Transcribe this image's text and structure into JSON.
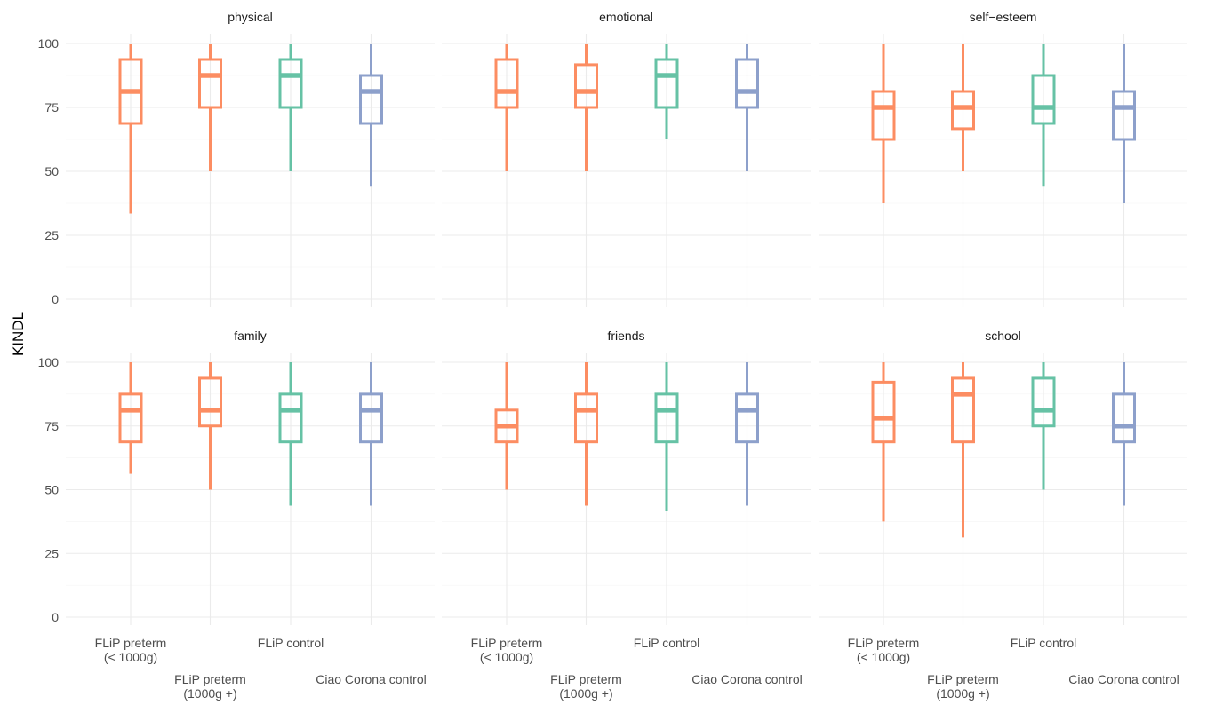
{
  "chart_data": {
    "type": "boxplot",
    "ylabel": "KINDL",
    "ylim": [
      0,
      100
    ],
    "yticks": [
      0,
      25,
      50,
      75,
      100
    ],
    "grid": true,
    "legend": "none",
    "categories": [
      {
        "key": "preterm_lt1000",
        "lines": [
          "FLiP preterm",
          "(< 1000g)"
        ],
        "row": 0
      },
      {
        "key": "preterm_ge1000",
        "lines": [
          "FLiP preterm",
          "(1000g +)"
        ],
        "row": 1
      },
      {
        "key": "control",
        "lines": [
          "FLiP control"
        ],
        "row": 0
      },
      {
        "key": "ciao",
        "lines": [
          "Ciao Corona control"
        ],
        "row": 1
      }
    ],
    "colors": {
      "preterm_lt1000": "#fc8d62",
      "preterm_ge1000": "#fc8d62",
      "control": "#66c2a5",
      "ciao": "#8da0cb"
    },
    "panels": [
      {
        "title": "physical",
        "boxes": [
          {
            "min": 33.5,
            "q1": 68.75,
            "median": 81.25,
            "q3": 93.75,
            "max": 100
          },
          {
            "min": 50,
            "q1": 75,
            "median": 87.5,
            "q3": 93.75,
            "max": 100
          },
          {
            "min": 50,
            "q1": 75,
            "median": 87.5,
            "q3": 93.75,
            "max": 100
          },
          {
            "min": 44,
            "q1": 68.75,
            "median": 81.25,
            "q3": 87.5,
            "max": 100
          }
        ]
      },
      {
        "title": "emotional",
        "boxes": [
          {
            "min": 50,
            "q1": 75,
            "median": 81.25,
            "q3": 93.75,
            "max": 100
          },
          {
            "min": 50,
            "q1": 75,
            "median": 81.25,
            "q3": 91.7,
            "max": 100
          },
          {
            "min": 62.5,
            "q1": 75,
            "median": 87.5,
            "q3": 93.75,
            "max": 100
          },
          {
            "min": 50,
            "q1": 75,
            "median": 81.25,
            "q3": 93.75,
            "max": 100
          }
        ]
      },
      {
        "title": "self−esteem",
        "boxes": [
          {
            "min": 37.5,
            "q1": 62.5,
            "median": 75,
            "q3": 81.25,
            "max": 100
          },
          {
            "min": 50,
            "q1": 66.7,
            "median": 75,
            "q3": 81.25,
            "max": 100
          },
          {
            "min": 44,
            "q1": 68.75,
            "median": 75,
            "q3": 87.5,
            "max": 100
          },
          {
            "min": 37.5,
            "q1": 62.5,
            "median": 75,
            "q3": 81.25,
            "max": 100
          }
        ]
      },
      {
        "title": "family",
        "boxes": [
          {
            "min": 56.25,
            "q1": 68.75,
            "median": 81.25,
            "q3": 87.5,
            "max": 100
          },
          {
            "min": 50,
            "q1": 75,
            "median": 81.25,
            "q3": 93.75,
            "max": 100
          },
          {
            "min": 43.75,
            "q1": 68.75,
            "median": 81.25,
            "q3": 87.5,
            "max": 100
          },
          {
            "min": 43.75,
            "q1": 68.75,
            "median": 81.25,
            "q3": 87.5,
            "max": 100
          }
        ]
      },
      {
        "title": "friends",
        "boxes": [
          {
            "min": 50,
            "q1": 68.75,
            "median": 75,
            "q3": 81.25,
            "max": 100
          },
          {
            "min": 43.75,
            "q1": 68.75,
            "median": 81.25,
            "q3": 87.5,
            "max": 100
          },
          {
            "min": 41.7,
            "q1": 68.75,
            "median": 81.25,
            "q3": 87.5,
            "max": 100
          },
          {
            "min": 43.75,
            "q1": 68.75,
            "median": 81.25,
            "q3": 87.5,
            "max": 100
          }
        ]
      },
      {
        "title": "school",
        "boxes": [
          {
            "min": 37.5,
            "q1": 68.75,
            "median": 78.1,
            "q3": 92.2,
            "max": 100
          },
          {
            "min": 31.25,
            "q1": 68.75,
            "median": 87.5,
            "q3": 93.75,
            "max": 100
          },
          {
            "min": 50,
            "q1": 75,
            "median": 81.25,
            "q3": 93.75,
            "max": 100
          },
          {
            "min": 43.75,
            "q1": 68.75,
            "median": 75,
            "q3": 87.5,
            "max": 100
          }
        ]
      }
    ]
  }
}
